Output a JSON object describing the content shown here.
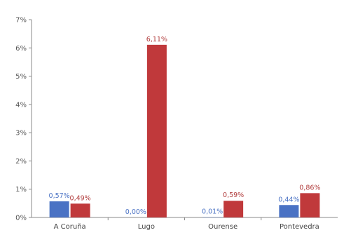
{
  "chart_data": {
    "type": "bar",
    "categories": [
      "A Coruña",
      "Lugo",
      "Ourense",
      "Pontevedra"
    ],
    "series": [
      {
        "values": [
          0.57,
          0.0,
          0.01,
          0.44
        ],
        "labels": [
          "0,57%",
          "0,00%",
          "0,01%",
          "0,44%"
        ],
        "color": "#4a72c4",
        "label_color": "#4a72c4"
      },
      {
        "values": [
          0.49,
          6.11,
          0.59,
          0.86
        ],
        "labels": [
          "0,49%",
          "6,11%",
          "0,59%",
          "0,86%"
        ],
        "color": "#c0393b",
        "label_color": "#b03a3a"
      }
    ],
    "yticks": [
      0,
      1,
      2,
      3,
      4,
      5,
      6,
      7
    ],
    "ytick_labels": [
      "0%",
      "1%",
      "2%",
      "3%",
      "4%",
      "5%",
      "6%",
      "7%"
    ],
    "ylim": [
      0,
      7
    ],
    "grid": false,
    "title": "",
    "xlabel": "",
    "ylabel": "",
    "axis_color": "#8a8a8a"
  }
}
